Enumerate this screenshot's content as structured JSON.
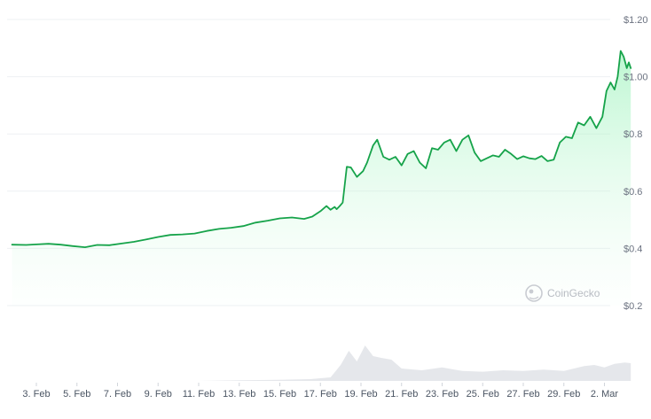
{
  "chart_data": {
    "type": "area",
    "watermark": "CoinGecko",
    "y_ticks": [
      "$0.2",
      "$0.4",
      "$0.6",
      "$0.8",
      "$1.00",
      "$1.20"
    ],
    "x_ticks": [
      "3. Feb",
      "5. Feb",
      "7. Feb",
      "9. Feb",
      "11. Feb",
      "13. Feb",
      "15. Feb",
      "17. Feb",
      "19. Feb",
      "21. Feb",
      "23. Feb",
      "25. Feb",
      "27. Feb",
      "29. Feb",
      "2. Mar"
    ],
    "ylim": [
      0.2,
      1.2
    ],
    "x_range_days": [
      1.8,
      32.3
    ],
    "grid": true,
    "colors": {
      "line": "#16a34a",
      "fill_top": "#86efac",
      "grid": "#eef0f3",
      "volume": "#e5e7eb"
    },
    "price_series": {
      "x": [
        1.8,
        2.5,
        3.0,
        3.6,
        4.2,
        4.8,
        5.4,
        6.0,
        6.6,
        7.2,
        7.8,
        8.4,
        9.0,
        9.6,
        10.2,
        10.8,
        11.4,
        12.0,
        12.6,
        13.2,
        13.8,
        14.4,
        15.0,
        15.6,
        16.2,
        16.6,
        17.0,
        17.3,
        17.5,
        17.7,
        17.8,
        17.95,
        18.1,
        18.3,
        18.5,
        18.8,
        19.1,
        19.3,
        19.6,
        19.8,
        20.1,
        20.4,
        20.7,
        21.0,
        21.3,
        21.6,
        21.9,
        22.2,
        22.5,
        22.8,
        23.1,
        23.4,
        23.7,
        24.0,
        24.3,
        24.6,
        24.9,
        25.2,
        25.5,
        25.8,
        26.1,
        26.4,
        26.7,
        27.0,
        27.3,
        27.6,
        27.9,
        28.2,
        28.5,
        28.8,
        29.1,
        29.4,
        29.7,
        30.0,
        30.3,
        30.6,
        30.9,
        31.1,
        31.3,
        31.5,
        31.65,
        31.8,
        31.95,
        32.1,
        32.2,
        32.3
      ],
      "y": [
        0.413,
        0.412,
        0.414,
        0.416,
        0.413,
        0.408,
        0.404,
        0.412,
        0.411,
        0.417,
        0.423,
        0.431,
        0.44,
        0.447,
        0.449,
        0.452,
        0.461,
        0.468,
        0.472,
        0.478,
        0.49,
        0.497,
        0.505,
        0.508,
        0.503,
        0.511,
        0.53,
        0.548,
        0.535,
        0.545,
        0.537,
        0.548,
        0.56,
        0.685,
        0.683,
        0.65,
        0.67,
        0.7,
        0.76,
        0.78,
        0.72,
        0.71,
        0.72,
        0.69,
        0.73,
        0.74,
        0.7,
        0.68,
        0.75,
        0.745,
        0.77,
        0.78,
        0.74,
        0.78,
        0.795,
        0.735,
        0.705,
        0.715,
        0.725,
        0.72,
        0.745,
        0.73,
        0.712,
        0.722,
        0.715,
        0.712,
        0.723,
        0.705,
        0.71,
        0.77,
        0.79,
        0.785,
        0.84,
        0.83,
        0.86,
        0.82,
        0.86,
        0.95,
        0.98,
        0.955,
        1.0,
        1.09,
        1.07,
        1.03,
        1.05,
        1.03
      ]
    },
    "volume_series": {
      "x": [
        1.8,
        3.0,
        5.0,
        7.0,
        9.0,
        11.0,
        13.0,
        15.0,
        16.5,
        17.5,
        18.0,
        18.4,
        18.8,
        19.2,
        19.6,
        20.0,
        20.5,
        21.0,
        22.0,
        23.0,
        24.0,
        25.0,
        26.0,
        27.0,
        28.0,
        29.0,
        29.5,
        30.0,
        30.5,
        31.0,
        31.5,
        32.0,
        32.3
      ],
      "v": [
        0,
        0,
        0,
        0,
        0,
        0,
        0.02,
        0.03,
        0.05,
        0.1,
        0.45,
        0.85,
        0.55,
        1.0,
        0.7,
        0.65,
        0.6,
        0.35,
        0.3,
        0.38,
        0.28,
        0.26,
        0.3,
        0.28,
        0.32,
        0.28,
        0.35,
        0.42,
        0.45,
        0.38,
        0.48,
        0.52,
        0.5
      ]
    }
  }
}
